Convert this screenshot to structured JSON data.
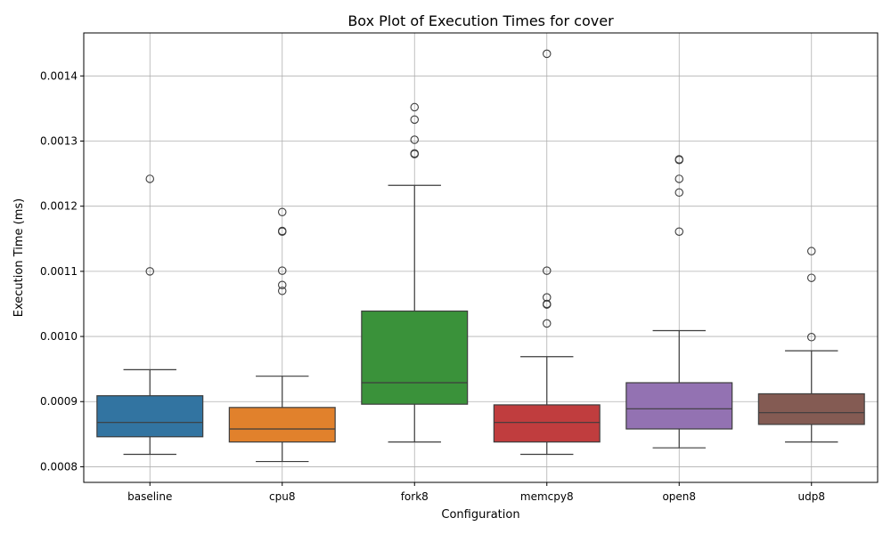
{
  "chart_data": {
    "type": "box",
    "title": "Box Plot of Execution Times for cover",
    "xlabel": "Configuration",
    "ylabel": "Execution Time (ms)",
    "ylim": [
      0.000776,
      0.001466
    ],
    "yticks": [
      0.0008,
      0.0009,
      0.001,
      0.0011,
      0.0012,
      0.0013,
      0.0014
    ],
    "ytick_labels": [
      "0.0008",
      "0.0009",
      "0.0010",
      "0.0011",
      "0.0012",
      "0.0013",
      "0.0014"
    ],
    "grid": true,
    "categories": [
      "baseline",
      "cpu8",
      "fork8",
      "memcpy8",
      "open8",
      "udp8"
    ],
    "series": [
      {
        "category": "baseline",
        "color": "#3274a1",
        "whisker_low": 0.000819,
        "q1": 0.000846,
        "median": 0.000868,
        "q3": 0.000909,
        "whisker_high": 0.000949,
        "outliers": [
          0.0011,
          0.001242
        ]
      },
      {
        "category": "cpu8",
        "color": "#e1812c",
        "whisker_low": 0.000808,
        "q1": 0.000838,
        "median": 0.000858,
        "q3": 0.000891,
        "whisker_high": 0.000939,
        "outliers": [
          0.00107,
          0.001079,
          0.001101,
          0.001161,
          0.001162,
          0.001191
        ]
      },
      {
        "category": "fork8",
        "color": "#3a923a",
        "whisker_low": 0.000838,
        "q1": 0.000896,
        "median": 0.000929,
        "q3": 0.001039,
        "whisker_high": 0.001232,
        "outliers": [
          0.00128,
          0.001281,
          0.001302,
          0.001333,
          0.001352
        ]
      },
      {
        "category": "memcpy8",
        "color": "#c03d3e",
        "whisker_low": 0.000819,
        "q1": 0.000838,
        "median": 0.000868,
        "q3": 0.000895,
        "whisker_high": 0.000969,
        "outliers": [
          0.00102,
          0.001049,
          0.00105,
          0.00106,
          0.001101,
          0.001434
        ]
      },
      {
        "category": "open8",
        "color": "#9372b2",
        "whisker_low": 0.000829,
        "q1": 0.000858,
        "median": 0.000889,
        "q3": 0.000929,
        "whisker_high": 0.001009,
        "outliers": [
          0.001161,
          0.001221,
          0.001242,
          0.001271,
          0.001272
        ]
      },
      {
        "category": "udp8",
        "color": "#845b53",
        "whisker_low": 0.000838,
        "q1": 0.000865,
        "median": 0.000883,
        "q3": 0.000912,
        "whisker_high": 0.000978,
        "outliers": [
          0.000999,
          0.00109,
          0.001131
        ]
      }
    ]
  }
}
